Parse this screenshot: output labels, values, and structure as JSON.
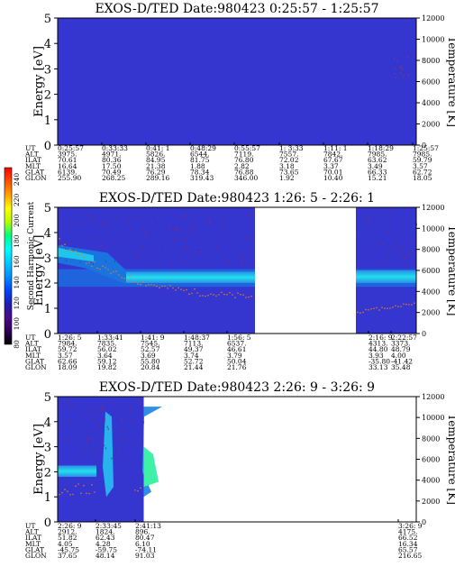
{
  "colorbar": {
    "label": "Second Harmonic Current",
    "ticks": [
      "240",
      "220",
      "200",
      "180",
      "160",
      "140",
      "120",
      "100",
      "80"
    ],
    "colors": [
      "#ff0000",
      "#ff5000",
      "#ffa000",
      "#ffff00",
      "#b4ff00",
      "#00ff80",
      "#00ffff",
      "#00c8ff",
      "#0090ff",
      "#0046ff",
      "#1e1eb4",
      "#4b0a8c",
      "#300055",
      "#000000"
    ]
  },
  "colors": {
    "background_blue": "#3535cf",
    "dotted_trace": "#e07a2a",
    "band_cyan": "#22d6e6"
  },
  "chart_data": [
    {
      "type": "heatmap",
      "title": "EXOS-D/TED   Date:980423  0:25:57 - 1:25:57",
      "ylabel": "Energy [eV]",
      "y2label": "Temperature [K]",
      "ylim": [
        0,
        5
      ],
      "y2lim": [
        0,
        12000
      ],
      "yticks": [
        "0",
        "1",
        "2",
        "3",
        "4",
        "5"
      ],
      "y2ticks": [
        "0",
        "2000",
        "4000",
        "6000",
        "8000",
        "10000",
        "12000"
      ],
      "row_labels": [
        "UT",
        "ALT",
        "ILAT",
        "MLT",
        "GLAT",
        "GLON"
      ],
      "columns": [
        [
          "0:25:57",
          "3975.",
          "70.61",
          "16.64",
          "6139.",
          "255.90"
        ],
        [
          "0:33:33",
          "4971.",
          "80.36",
          "17.50",
          "70.49",
          "268.25"
        ],
        [
          "0:41: 1",
          "5826.",
          "84.95",
          "21.38",
          "76.29",
          "289.16"
        ],
        [
          "0:48:29",
          "6544.",
          "81.75",
          "1.88",
          "78.34",
          "319.43"
        ],
        [
          "0:55:57",
          "7119.",
          "76.80",
          "2.82",
          "76.88",
          "346.00"
        ],
        [
          "1: 3:33",
          "7557.",
          "72.02",
          "3.18",
          "73.65",
          "1.92"
        ],
        [
          "1:11: 1",
          "7842.",
          "67.67",
          "3.37",
          "70.01",
          "10.40"
        ],
        [
          "1:18:29",
          "7985.",
          "63.62",
          "3.49",
          "66.33",
          "15.21"
        ],
        [
          "1:25:57",
          "7985.",
          "59.79",
          "3.57",
          "62.72",
          "18.05"
        ]
      ]
    },
    {
      "type": "heatmap",
      "title": "EXOS-D/TED   Date:980423  1:26: 5 - 2:26: 1",
      "ylabel": "Energy [eV]",
      "y2label": "Temperature [K]",
      "ylim": [
        0,
        5
      ],
      "y2lim": [
        0,
        12000
      ],
      "yticks": [
        "0",
        "1",
        "2",
        "3",
        "4",
        "5"
      ],
      "y2ticks": [
        "0",
        "2000",
        "4000",
        "6000",
        "8000",
        "10000",
        "12000"
      ],
      "row_labels": [
        "UT",
        "ALT",
        "ILAT",
        "MLT",
        "GLAT",
        "GLON"
      ],
      "columns": [
        [
          "1:26: 5",
          "7984.",
          "59.72",
          "3.57",
          "62.66",
          "18.09"
        ],
        [
          "1:33:41",
          "7835.",
          "56.02",
          "3.64",
          "59.12",
          "19.82"
        ],
        [
          "1:41: 9",
          "7545.",
          "52.57",
          "3.69",
          "55.80",
          "20.84"
        ],
        [
          "1:48:37",
          "7113.",
          "49.37",
          "3.74",
          "52.72",
          "21.44"
        ],
        [
          "1:56: 5",
          "6537.",
          "46.61",
          "3.79",
          "50.04",
          "21.76"
        ],
        [
          "2:16: 9",
          "4313.",
          "44.80",
          "3.93",
          "-35.80",
          "33.13"
        ],
        [
          "2:22:57",
          "3373.",
          "48.79",
          "4.00",
          "-41.42",
          "35.48"
        ]
      ],
      "data_gap": true
    },
    {
      "type": "heatmap",
      "title": "EXOS-D/TED   Date:980423  2:26: 9 - 3:26: 9",
      "ylabel": "Energy [eV]",
      "y2label": "Temperature [K]",
      "ylim": [
        0,
        5
      ],
      "y2lim": [
        0,
        12000
      ],
      "yticks": [
        "0",
        "1",
        "2",
        "3",
        "4",
        "5"
      ],
      "y2ticks": [
        "0",
        "2000",
        "4000",
        "6000",
        "8000",
        "10000",
        "12000"
      ],
      "row_labels": [
        "UT",
        "ALT",
        "ILAT",
        "MLT",
        "GLAT",
        "GLON"
      ],
      "columns": [
        [
          "2:26: 9",
          "2912.",
          "51.82",
          "4.05",
          "-45.75",
          "37.65"
        ],
        [
          "2:33:45",
          "1824.",
          "62.43",
          "4.28",
          "-59.75",
          "48.14"
        ],
        [
          "2:41:13",
          "896.",
          "80.47",
          "6.10",
          "-74.11",
          "91.03"
        ],
        [
          "3:26: 9",
          "4175.",
          "66.52",
          "16.34",
          "65.57",
          "216.65"
        ]
      ],
      "data_until_fraction": 0.24
    }
  ]
}
